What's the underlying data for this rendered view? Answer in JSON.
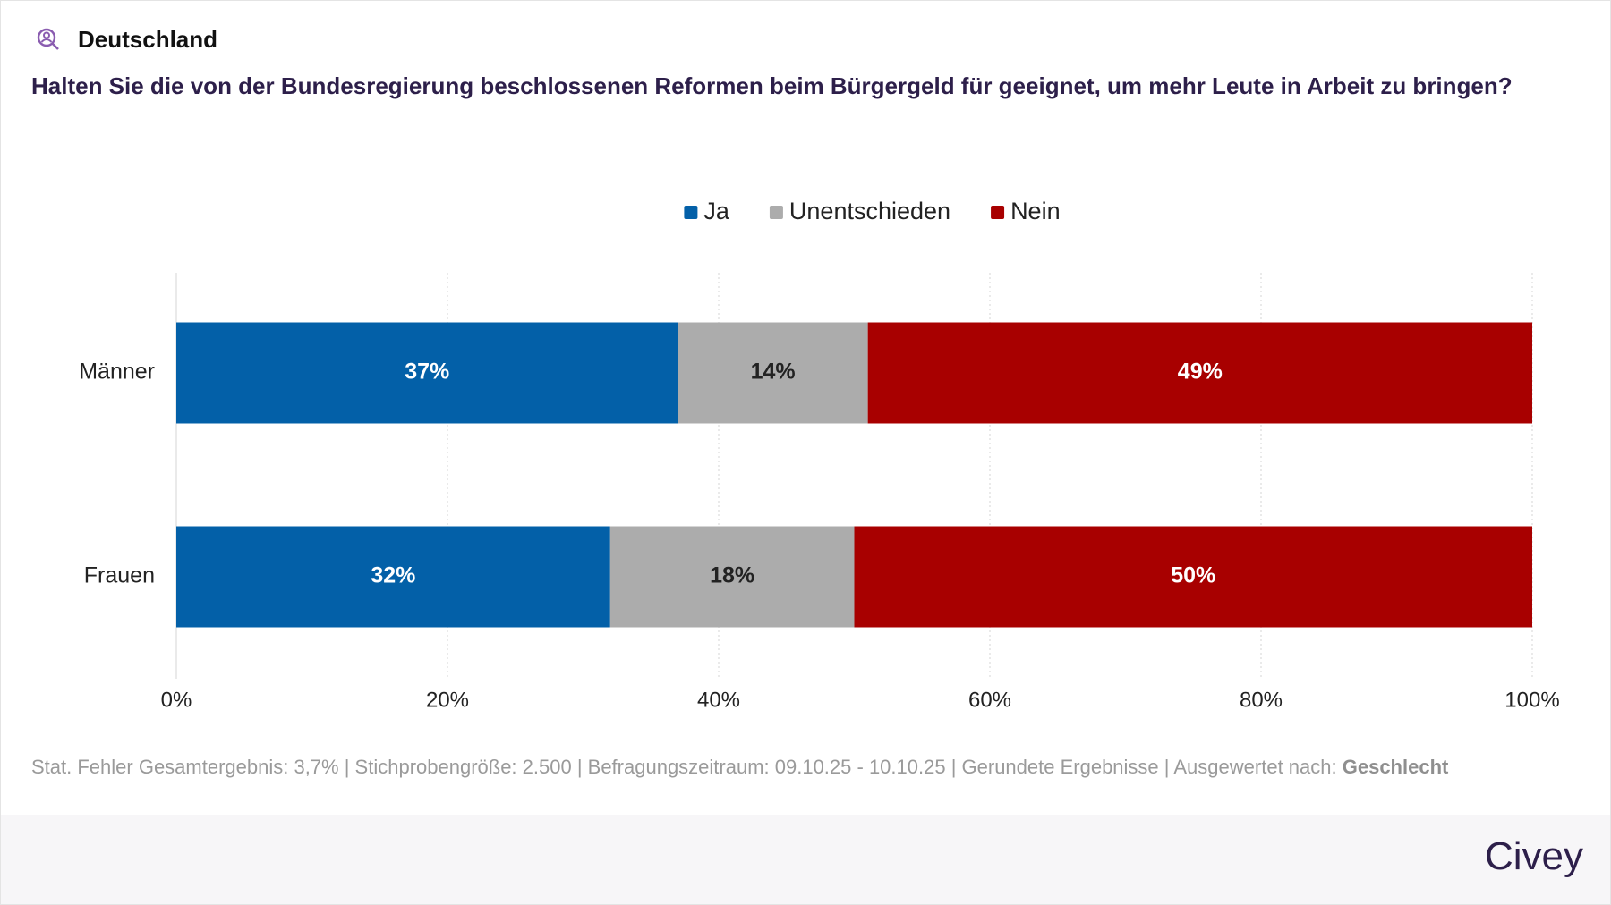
{
  "header": {
    "region": "Deutschland"
  },
  "chart_data": {
    "type": "bar",
    "orientation": "horizontal",
    "stacked": true,
    "title": "Halten Sie die von der Bundesregierung beschlossenen Reformen beim Bürgergeld für geeignet, um mehr Leute in Arbeit zu bringen?",
    "categories": [
      "Männer",
      "Frauen"
    ],
    "series": [
      {
        "name": "Ja",
        "color": "#0360a8",
        "values": [
          37,
          32
        ],
        "value_labels": [
          "37%",
          "32%"
        ]
      },
      {
        "name": "Unentschieden",
        "color": "#acacac",
        "values": [
          14,
          18
        ],
        "value_labels": [
          "14%",
          "18%"
        ]
      },
      {
        "name": "Nein",
        "color": "#a80000",
        "values": [
          49,
          50
        ],
        "value_labels": [
          "49%",
          "50%"
        ]
      }
    ],
    "xlim": [
      0,
      100
    ],
    "xticks": [
      {
        "value": 0,
        "label": "0%"
      },
      {
        "value": 20,
        "label": "20%"
      },
      {
        "value": 40,
        "label": "40%"
      },
      {
        "value": 60,
        "label": "60%"
      },
      {
        "value": 80,
        "label": "80%"
      },
      {
        "value": 100,
        "label": "100%"
      }
    ],
    "grid": true,
    "legend": "top"
  },
  "footnote": {
    "text": "Stat. Fehler Gesamtergebnis: 3,7% | Stichprobengröße: 2.500 | Befragungszeitraum: 09.10.25 - 10.10.25 | Gerundete Ergebnisse | Ausgewertet nach:",
    "emphasis": "Geschlecht"
  },
  "brand": "Civey"
}
